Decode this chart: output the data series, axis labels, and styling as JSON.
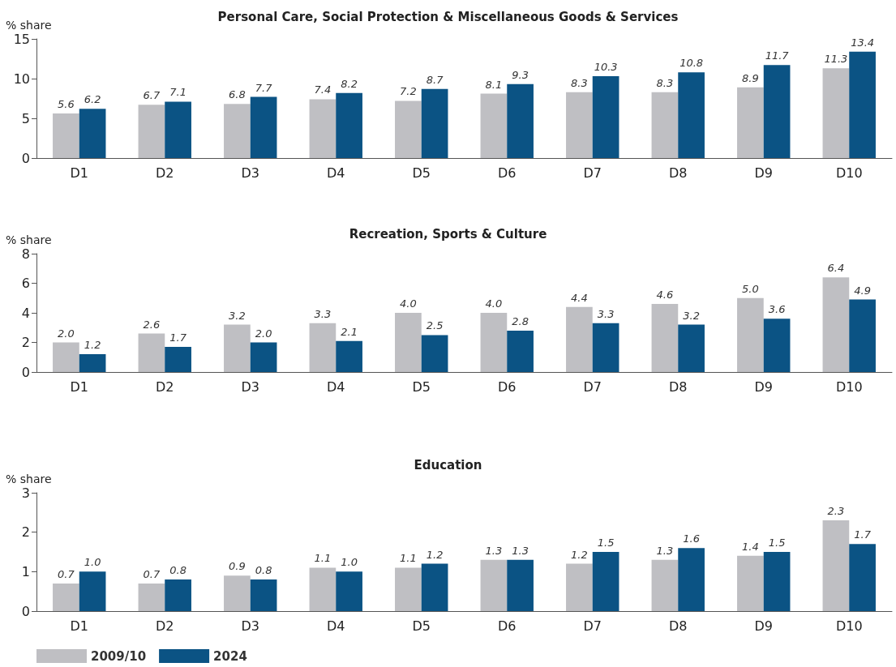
{
  "chart_data": [
    {
      "type": "bar",
      "title": "Personal Care, Social Protection & Miscellaneous Goods & Services",
      "ylabel": "% share",
      "categories": [
        "D1",
        "D2",
        "D3",
        "D4",
        "D5",
        "D6",
        "D7",
        "D8",
        "D9",
        "D10"
      ],
      "series": [
        {
          "color": "#bfbfc3",
          "values": [
            5.6,
            6.7,
            6.8,
            7.4,
            7.2,
            8.1,
            8.3,
            8.3,
            8.9,
            11.3
          ],
          "value_labels": [
            "5.6",
            "6.7",
            "6.8",
            "7.4",
            "7.2",
            "8.1",
            "8.3",
            "8.3",
            "8.9",
            "11.3"
          ]
        },
        {
          "color": "#0b5384",
          "values": [
            6.2,
            7.1,
            7.7,
            8.2,
            8.7,
            9.3,
            10.3,
            10.8,
            11.7,
            13.4
          ],
          "value_labels": [
            "6.2",
            "7.1",
            "7.7",
            "8.2",
            "8.7",
            "9.3",
            "10.3",
            "10.8",
            "11.7",
            "13.4"
          ]
        }
      ],
      "ylim": [
        0,
        15
      ],
      "yticks": [
        0,
        5,
        10,
        15
      ],
      "grid": false
    },
    {
      "type": "bar",
      "title": "Recreation, Sports & Culture",
      "ylabel": "% share",
      "categories": [
        "D1",
        "D2",
        "D3",
        "D4",
        "D5",
        "D6",
        "D7",
        "D8",
        "D9",
        "D10"
      ],
      "series": [
        {
          "color": "#bfbfc3",
          "values": [
            2.0,
            2.6,
            3.2,
            3.3,
            4.0,
            4.0,
            4.4,
            4.6,
            5.0,
            6.4
          ],
          "value_labels": [
            "2.0",
            "2.6",
            "3.2",
            "3.3",
            "4.0",
            "4.0",
            "4.4",
            "4.6",
            "5.0",
            "6.4"
          ]
        },
        {
          "color": "#0b5384",
          "values": [
            1.2,
            1.7,
            2.0,
            2.1,
            2.5,
            2.8,
            3.3,
            3.2,
            3.6,
            4.9
          ],
          "value_labels": [
            "1.2",
            "1.7",
            "2.0",
            "2.1",
            "2.5",
            "2.8",
            "3.3",
            "3.2",
            "3.6",
            "4.9"
          ]
        }
      ],
      "ylim": [
        0,
        8
      ],
      "yticks": [
        0,
        2,
        4,
        6,
        8
      ],
      "grid": false
    },
    {
      "type": "bar",
      "title": "Education",
      "ylabel": "% share",
      "categories": [
        "D1",
        "D2",
        "D3",
        "D4",
        "D5",
        "D6",
        "D7",
        "D8",
        "D9",
        "D10"
      ],
      "series": [
        {
          "name": "2009/10",
          "color": "#bfbfc3",
          "values": [
            0.7,
            0.7,
            0.9,
            1.1,
            1.1,
            1.3,
            1.2,
            1.3,
            1.4,
            2.3
          ],
          "value_labels": [
            "0.7",
            "0.7",
            "0.9",
            "1.1",
            "1.1",
            "1.3",
            "1.2",
            "1.3",
            "1.4",
            "2.3"
          ]
        },
        {
          "name": "2024",
          "color": "#0b5384",
          "values": [
            1.0,
            0.8,
            0.8,
            1.0,
            1.2,
            1.3,
            1.5,
            1.6,
            1.5,
            1.7
          ],
          "value_labels": [
            "1.0",
            "0.8",
            "0.8",
            "1.0",
            "1.2",
            "1.3",
            "1.5",
            "1.6",
            "1.5",
            "1.7"
          ]
        }
      ],
      "ylim": [
        0,
        3
      ],
      "yticks": [
        0,
        1,
        2,
        3
      ],
      "grid": false,
      "legend": "bottom left"
    }
  ]
}
